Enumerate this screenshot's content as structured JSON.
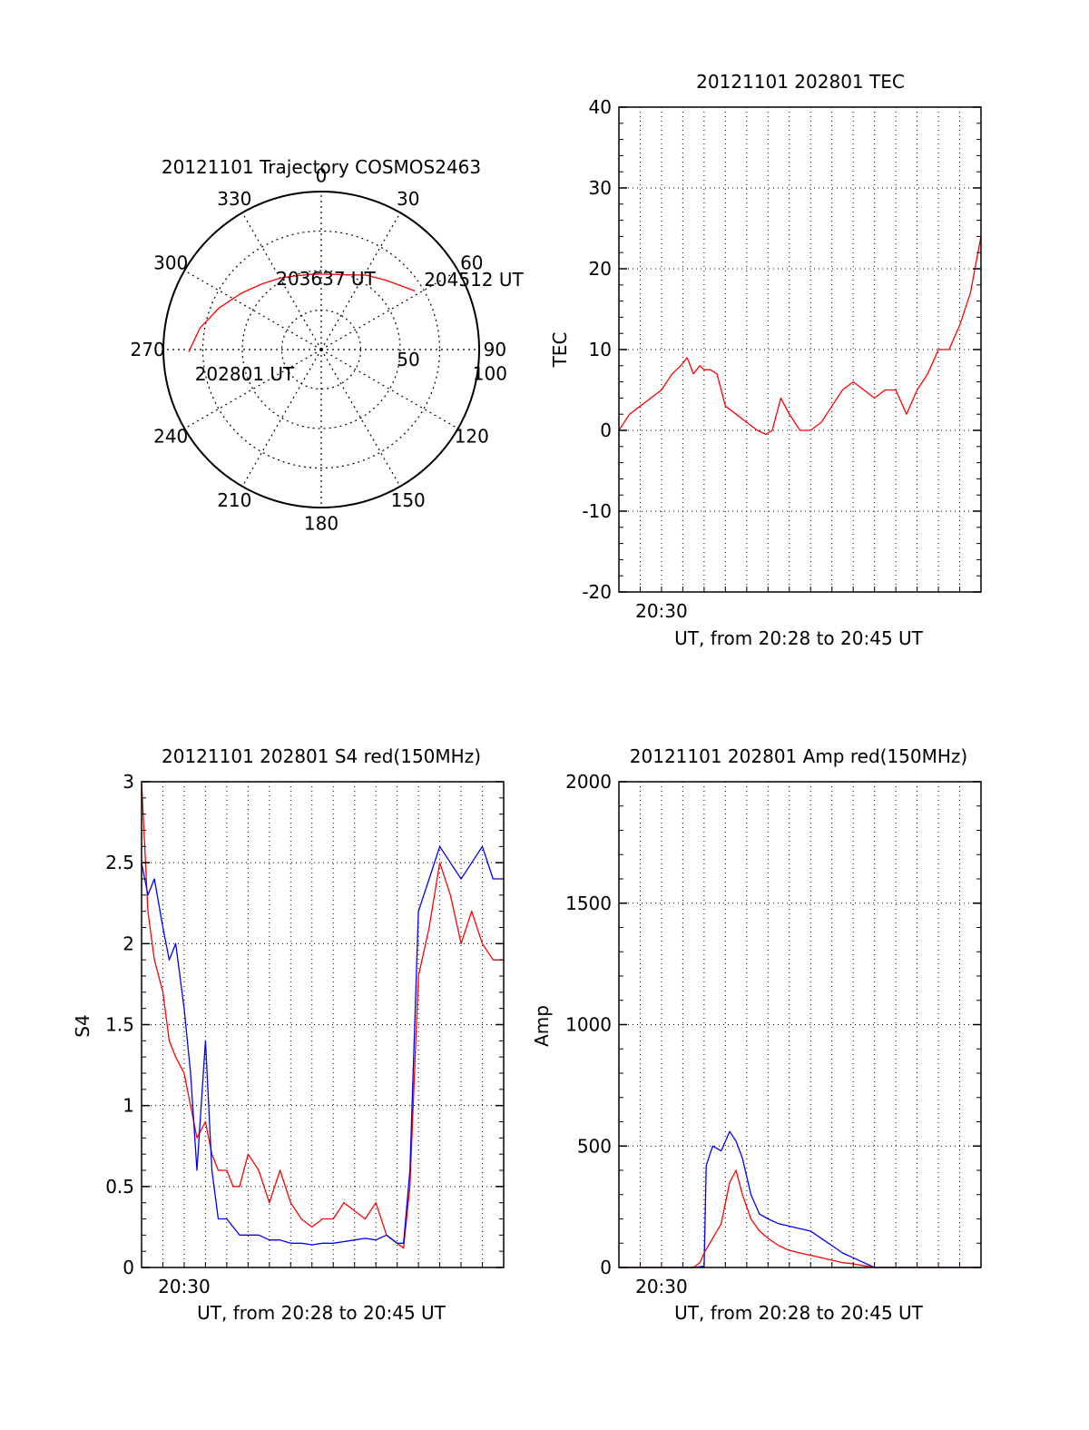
{
  "chart_data": [
    {
      "id": "trajectory",
      "type": "polar",
      "title": "20121101 Trajectory COSMOS2463",
      "azimuth_labels": [
        "0",
        "30",
        "60",
        "90",
        "120",
        "150",
        "180",
        "210",
        "240",
        "270",
        "300",
        "330"
      ],
      "radial_labels": [
        "50",
        "100"
      ],
      "radial_label_azimuth": 100,
      "radial_max": 100,
      "trajectory": {
        "color": "#ff0000",
        "points": [
          [
            269,
            84
          ],
          [
            280,
            78
          ],
          [
            292,
            70
          ],
          [
            305,
            62
          ],
          [
            318,
            56
          ],
          [
            331,
            52
          ],
          [
            343,
            49
          ],
          [
            355,
            48
          ],
          [
            7,
            48
          ],
          [
            19,
            50
          ],
          [
            31,
            55
          ],
          [
            43,
            60
          ],
          [
            58,
            70
          ]
        ]
      },
      "annotations": [
        {
          "text": "202801 UT",
          "az": 262,
          "r": 82
        },
        {
          "text": "203637 UT",
          "az": 2,
          "r": 49
        },
        {
          "text": "204512 UT",
          "az": 53,
          "r": 80
        }
      ]
    },
    {
      "id": "tec",
      "type": "line",
      "title": "20121101 202801 TEC",
      "xlabel": "UT, from 20:28 to 20:45 UT",
      "ylabel": "TEC",
      "xlim": [
        0,
        17
      ],
      "ylim": [
        -20,
        40
      ],
      "yticks": [
        -20,
        -10,
        0,
        10,
        20,
        30,
        40
      ],
      "xtick_labels": [
        {
          "x": 2,
          "label": "20:30"
        }
      ],
      "series": [
        {
          "color": "#ff0000",
          "x": [
            0,
            0.5,
            1,
            1.5,
            2,
            2.5,
            2.9,
            3.2,
            3.5,
            3.8,
            4,
            4.3,
            4.6,
            5,
            5.5,
            6,
            6.5,
            6.9,
            7.2,
            7.6,
            8,
            8.5,
            9,
            9.5,
            10,
            10.5,
            11,
            11.5,
            12,
            12.5,
            13,
            13.5,
            14,
            14.5,
            15,
            15.5,
            16,
            16.5,
            17
          ],
          "y": [
            0,
            2,
            3,
            4,
            5,
            7,
            8,
            9,
            7,
            8,
            7.5,
            7.5,
            7,
            3,
            2,
            1,
            0,
            -0.5,
            0,
            4,
            2,
            0,
            0,
            1,
            3,
            5,
            6,
            5,
            4,
            5,
            5,
            2,
            5,
            7,
            10,
            10,
            13,
            17,
            24
          ]
        }
      ]
    },
    {
      "id": "s4",
      "type": "line",
      "title": "20121101 202801 S4 red(150MHz)",
      "xlabel": "UT, from 20:28 to 20:45 UT",
      "ylabel": "S4",
      "xlim": [
        0,
        17
      ],
      "ylim": [
        0,
        3
      ],
      "yticks": [
        0,
        0.5,
        1,
        1.5,
        2,
        2.5,
        3
      ],
      "xtick_labels": [
        {
          "x": 2,
          "label": "20:30"
        }
      ],
      "series": [
        {
          "color": "#ff0000",
          "x": [
            0,
            0.3,
            0.6,
            1,
            1.3,
            1.6,
            2,
            2.3,
            2.6,
            3,
            3.3,
            3.6,
            4,
            4.3,
            4.6,
            5,
            5.5,
            6,
            6.5,
            7,
            7.5,
            8,
            8.5,
            9,
            9.5,
            10,
            10.5,
            11,
            11.5,
            12,
            12.3,
            12.6,
            13,
            13.5,
            14,
            14.5,
            15,
            15.5,
            16,
            16.5,
            17
          ],
          "y": [
            3,
            2.2,
            1.9,
            1.7,
            1.4,
            1.3,
            1.2,
            1,
            0.8,
            0.9,
            0.7,
            0.6,
            0.6,
            0.5,
            0.5,
            0.7,
            0.6,
            0.4,
            0.6,
            0.4,
            0.3,
            0.25,
            0.3,
            0.3,
            0.4,
            0.35,
            0.3,
            0.4,
            0.2,
            0.15,
            0.12,
            0.5,
            1.8,
            2.1,
            2.5,
            2.3,
            2.0,
            2.2,
            2.0,
            1.9,
            1.9
          ]
        },
        {
          "color": "#0000ff",
          "x": [
            0,
            0.3,
            0.6,
            1,
            1.3,
            1.6,
            2,
            2.3,
            2.6,
            3,
            3.3,
            3.6,
            4,
            4.3,
            4.6,
            5,
            5.5,
            6,
            6.5,
            7,
            7.5,
            8,
            8.5,
            9,
            9.5,
            10,
            10.5,
            11,
            11.5,
            12,
            12.3,
            12.6,
            13,
            13.5,
            14,
            14.5,
            15,
            15.5,
            16,
            16.5,
            17
          ],
          "y": [
            2.5,
            2.3,
            2.4,
            2.1,
            1.9,
            2.0,
            1.6,
            1.2,
            0.6,
            1.4,
            0.6,
            0.3,
            0.3,
            0.25,
            0.2,
            0.2,
            0.2,
            0.17,
            0.17,
            0.15,
            0.15,
            0.14,
            0.15,
            0.15,
            0.16,
            0.17,
            0.18,
            0.17,
            0.2,
            0.15,
            0.15,
            0.6,
            2.2,
            2.4,
            2.6,
            2.5,
            2.4,
            2.5,
            2.6,
            2.4,
            2.4
          ]
        }
      ]
    },
    {
      "id": "amp",
      "type": "line",
      "title": "20121101 202801 Amp red(150MHz)",
      "xlabel": "UT, from 20:28 to 20:45 UT",
      "ylabel": "Amp",
      "xlim": [
        0,
        17
      ],
      "ylim": [
        0,
        2000
      ],
      "yticks": [
        0,
        500,
        1000,
        1500,
        2000
      ],
      "xtick_labels": [
        {
          "x": 2,
          "label": "20:30"
        }
      ],
      "series": [
        {
          "color": "#0000ff",
          "x": [
            0,
            3,
            3.5,
            4,
            4.1,
            4.4,
            4.8,
            5.2,
            5.5,
            5.8,
            6.2,
            6.6,
            7,
            7.5,
            8,
            8.5,
            9,
            9.5,
            10,
            10.5,
            11,
            12,
            13,
            14,
            15,
            16,
            17
          ],
          "y": [
            0,
            0,
            0,
            5,
            420,
            500,
            480,
            560,
            520,
            450,
            300,
            220,
            200,
            180,
            170,
            160,
            150,
            120,
            90,
            60,
            40,
            0,
            0,
            0,
            0,
            0,
            0
          ]
        },
        {
          "color": "#ff0000",
          "x": [
            0,
            3,
            3.5,
            3.8,
            4,
            4.4,
            4.8,
            5.2,
            5.5,
            5.8,
            6.2,
            6.6,
            7,
            7.5,
            8,
            8.5,
            9,
            9.5,
            10,
            10.5,
            11,
            12,
            13,
            14,
            15,
            16,
            17
          ],
          "y": [
            0,
            0,
            0,
            20,
            60,
            120,
            180,
            350,
            400,
            300,
            200,
            150,
            120,
            90,
            70,
            60,
            50,
            40,
            30,
            20,
            15,
            0,
            0,
            0,
            0,
            0,
            0
          ]
        }
      ]
    }
  ]
}
